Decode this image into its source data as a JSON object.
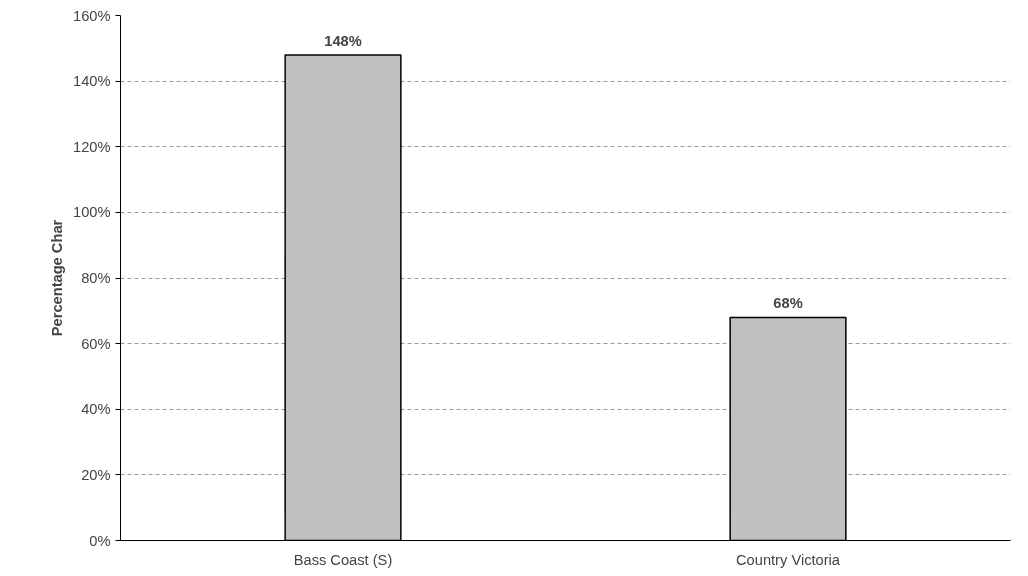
{
  "chart_data": {
    "type": "bar",
    "ylabel": "Percentage Char",
    "categories": [
      "Bass Coast (S)",
      "Country Victoria"
    ],
    "values": [
      148,
      68
    ],
    "value_labels": [
      "148%",
      "68%"
    ],
    "color": "#c0c0c0",
    "ylim": [
      0,
      160
    ],
    "yticks": [
      {
        "value": 0,
        "label": "0%"
      },
      {
        "value": 20,
        "label": "20%"
      },
      {
        "value": 40,
        "label": "40%"
      },
      {
        "value": 60,
        "label": "60%"
      },
      {
        "value": 80,
        "label": "80%"
      },
      {
        "value": 100,
        "label": "100%"
      },
      {
        "value": 120,
        "label": "120%"
      },
      {
        "value": 140,
        "label": "140%"
      },
      {
        "value": 160,
        "label": "160%"
      }
    ],
    "grid": "y"
  }
}
